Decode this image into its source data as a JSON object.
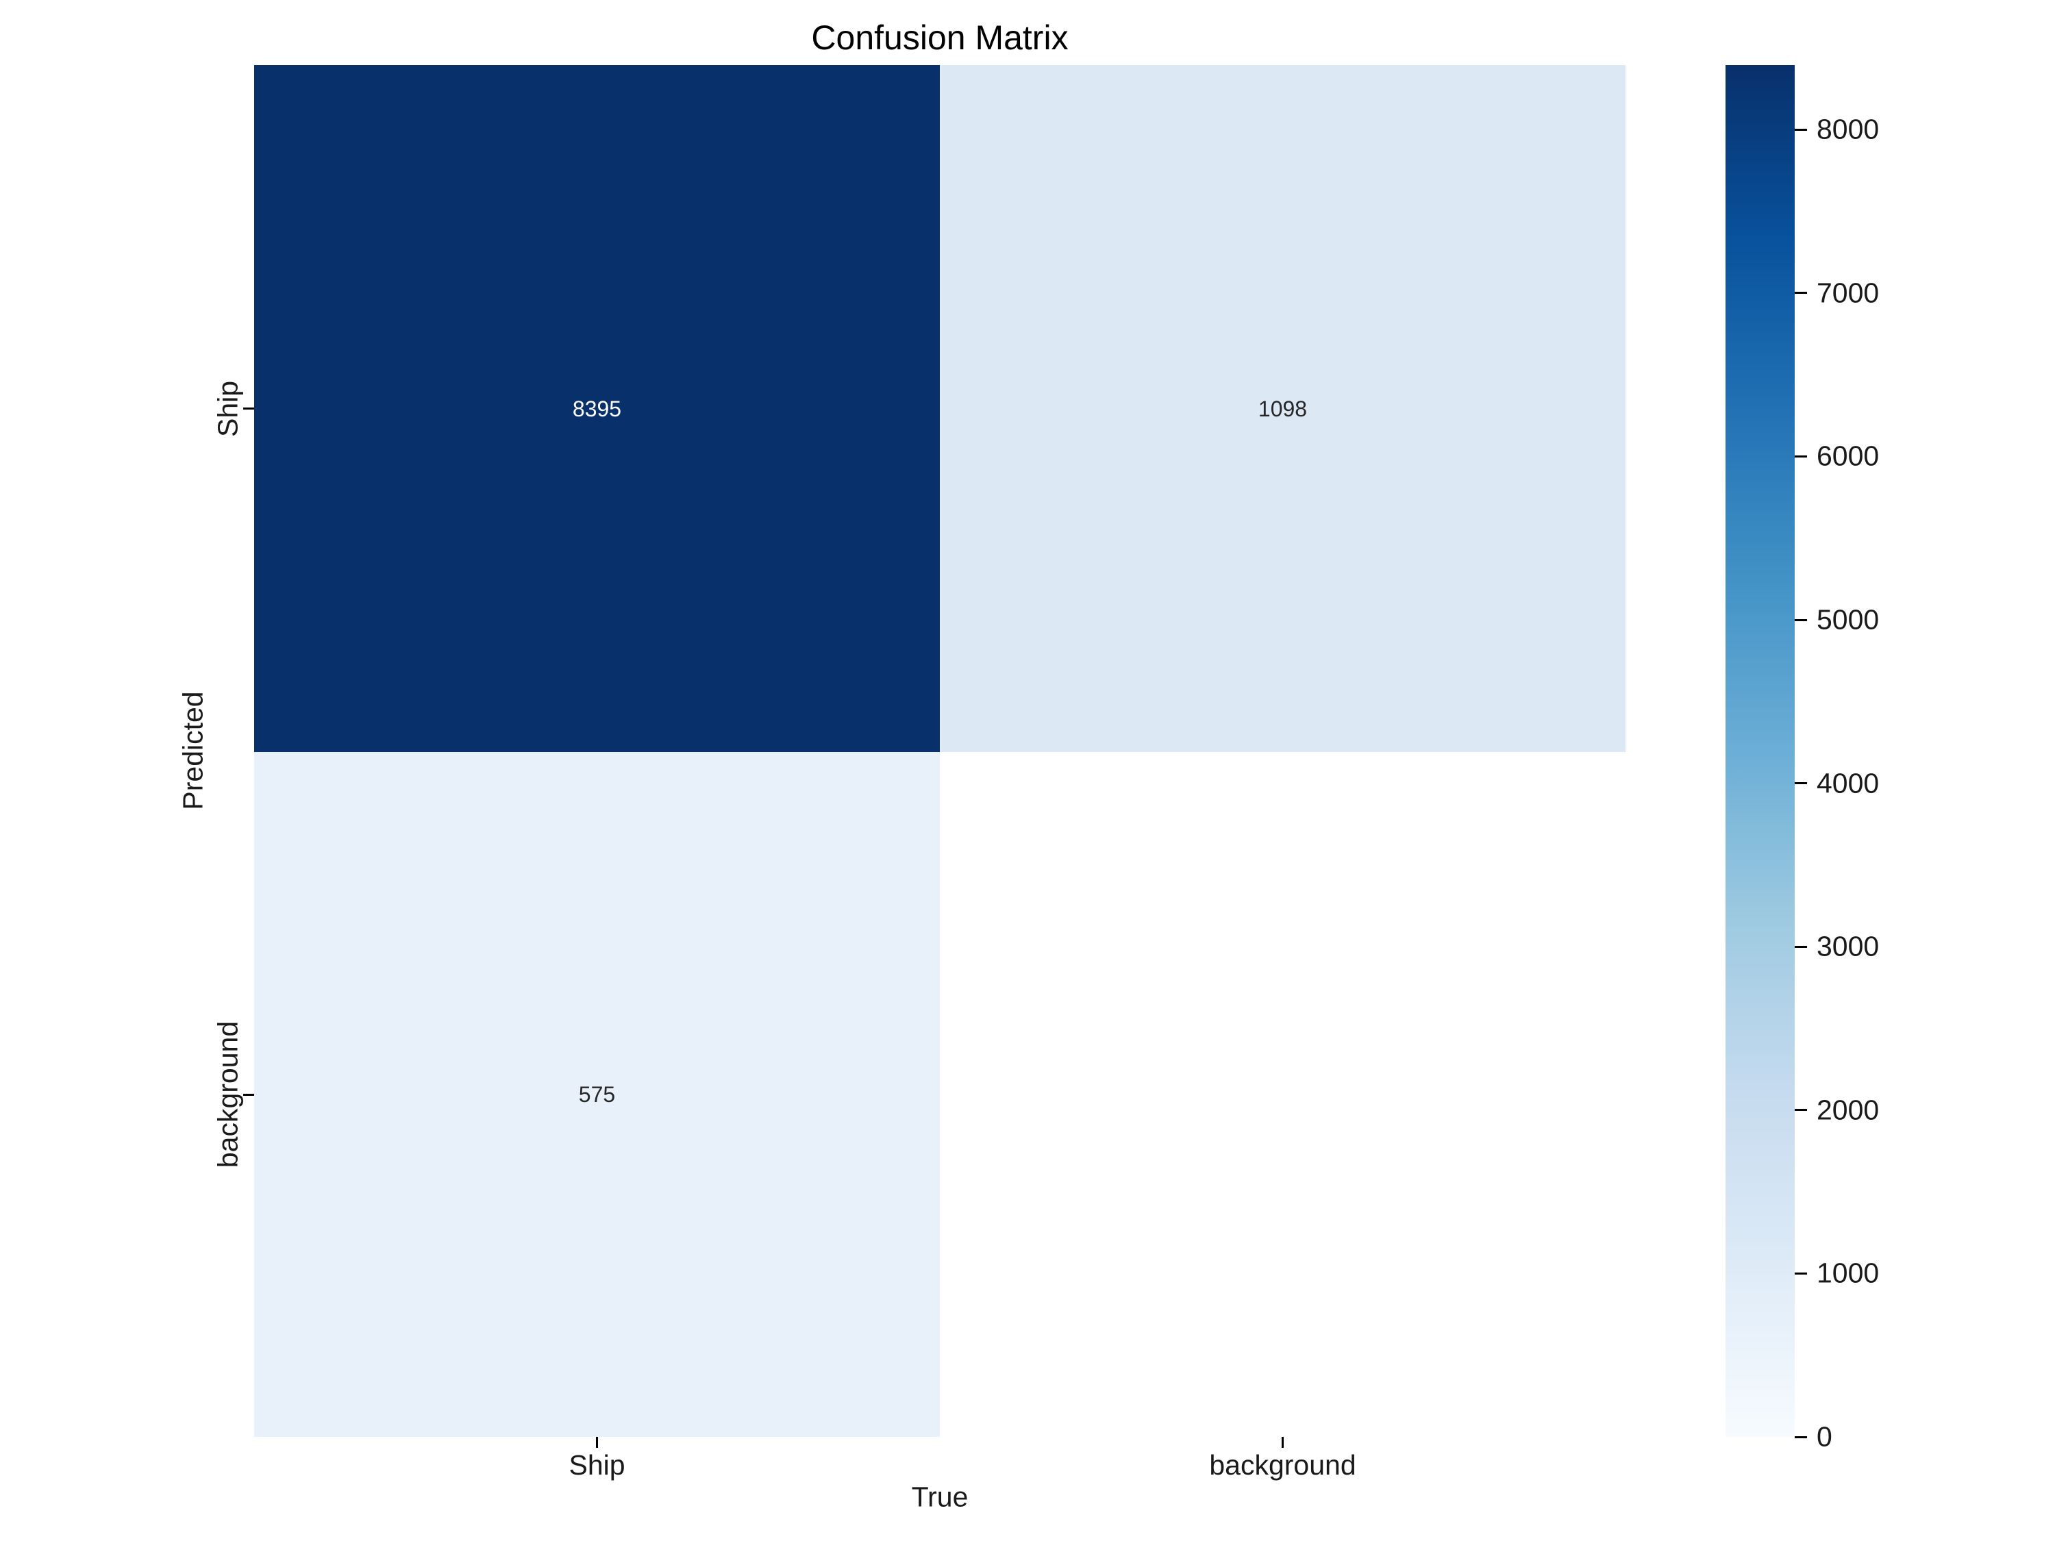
{
  "chart_data": {
    "type": "heatmap",
    "title": "Confusion Matrix",
    "xlabel": "True",
    "ylabel": "Predicted",
    "x_categories": [
      "Ship",
      "background"
    ],
    "y_categories": [
      "Ship",
      "background"
    ],
    "matrix": [
      [
        8395,
        1098
      ],
      [
        575,
        null
      ]
    ],
    "annotations": [
      [
        "8395",
        "1098"
      ],
      [
        "575",
        ""
      ]
    ],
    "cell_colors": [
      [
        "#08306b",
        "#dce9f5"
      ],
      [
        "#e8f1fa",
        "#ffffff"
      ]
    ],
    "cell_text_colors": [
      [
        "#ffffff",
        "#262626"
      ],
      [
        "#262626",
        "#262626"
      ]
    ],
    "colormap": "Blues",
    "vmin": 0,
    "vmax": 8395,
    "colorbar_ticks": [
      0,
      1000,
      2000,
      3000,
      4000,
      5000,
      6000,
      7000,
      8000
    ],
    "colorbar_position": "right",
    "grid": false,
    "background_color": "#ffffff",
    "accent_dark_blue": "#08306b"
  }
}
